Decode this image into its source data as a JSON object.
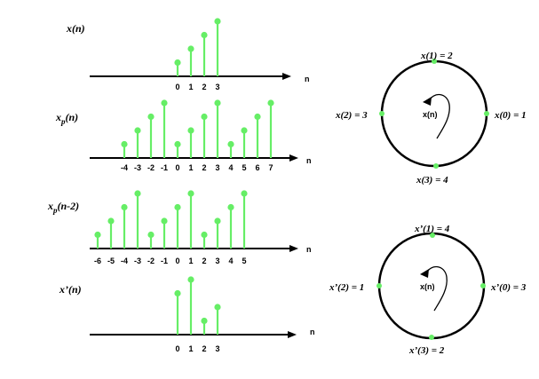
{
  "colors": {
    "stem": "#66ee66",
    "line": "#000000"
  },
  "axis_symbol": "n",
  "plots": [
    {
      "label": "x(n)",
      "sub": "",
      "ticks": [
        "0",
        "1",
        "2",
        "3"
      ],
      "samples": [
        {
          "n": 0,
          "v": 1
        },
        {
          "n": 1,
          "v": 2
        },
        {
          "n": 2,
          "v": 3
        },
        {
          "n": 3,
          "v": 4
        }
      ]
    },
    {
      "label": "x",
      "sub": "p",
      "suffix": "(n)",
      "ticks": [
        "-4",
        "-3",
        "-2",
        "-1",
        "0",
        "1",
        "2",
        "3",
        "4",
        "5",
        "6",
        "7"
      ],
      "samples": [
        {
          "n": -4,
          "v": 1
        },
        {
          "n": -3,
          "v": 2
        },
        {
          "n": -2,
          "v": 3
        },
        {
          "n": -1,
          "v": 4
        },
        {
          "n": 0,
          "v": 1
        },
        {
          "n": 1,
          "v": 2
        },
        {
          "n": 2,
          "v": 3
        },
        {
          "n": 3,
          "v": 4
        },
        {
          "n": 4,
          "v": 1
        },
        {
          "n": 5,
          "v": 2
        },
        {
          "n": 6,
          "v": 3
        },
        {
          "n": 7,
          "v": 4
        }
      ]
    },
    {
      "label": "x",
      "sub": "p",
      "suffix": "(n-2)",
      "ticks": [
        "-6",
        "-5",
        "-4",
        "-3",
        "-2",
        "-1",
        "0",
        "1",
        "2",
        "3",
        "4",
        "5"
      ],
      "samples": [
        {
          "n": -6,
          "v": 1
        },
        {
          "n": -5,
          "v": 2
        },
        {
          "n": -4,
          "v": 3
        },
        {
          "n": -3,
          "v": 4
        },
        {
          "n": -2,
          "v": 1
        },
        {
          "n": -1,
          "v": 2
        },
        {
          "n": 0,
          "v": 3
        },
        {
          "n": 1,
          "v": 4
        },
        {
          "n": 2,
          "v": 1
        },
        {
          "n": 3,
          "v": 2
        },
        {
          "n": 4,
          "v": 3
        },
        {
          "n": 5,
          "v": 4
        }
      ]
    },
    {
      "label": "x’(n)",
      "sub": "",
      "ticks": [
        "0",
        "1",
        "2",
        "3"
      ],
      "samples": [
        {
          "n": 0,
          "v": 3
        },
        {
          "n": 1,
          "v": 4
        },
        {
          "n": 2,
          "v": 1
        },
        {
          "n": 3,
          "v": 2
        }
      ]
    }
  ],
  "circles": [
    {
      "center_label": "x(n)",
      "top": "x(1) = 2",
      "left": "x(2) = 3",
      "right": "x(0) = 1",
      "bottom": "x(3) = 4"
    },
    {
      "center_label": "x(n)",
      "top": "x’(1) = 4",
      "left": "x’(2) = 1",
      "right": "x’(0) = 3",
      "bottom": "x’(3) = 2"
    }
  ]
}
